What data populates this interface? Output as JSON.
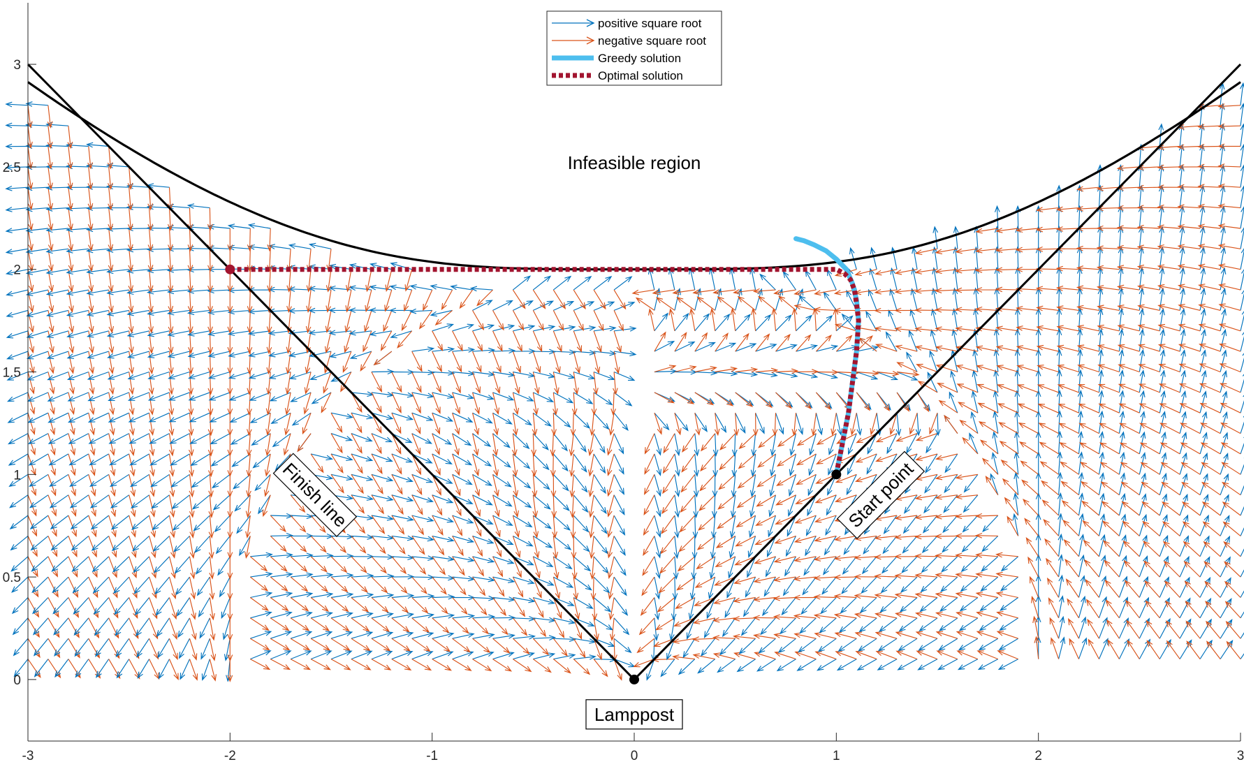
{
  "chart_data": {
    "type": "quiver",
    "xlim": [
      -3,
      3
    ],
    "ylim": [
      -0.3,
      3.3
    ],
    "xticks": [
      -3,
      -2,
      -1,
      0,
      1,
      2,
      3
    ],
    "yticks": [
      0,
      0.5,
      1,
      1.5,
      2,
      2.5,
      3
    ],
    "xtick_labels": [
      "-3",
      "-2",
      "-1",
      "0",
      "1",
      "2",
      "3"
    ],
    "ytick_labels": [
      "0",
      "0.5",
      "1",
      "1.5",
      "2",
      "2.5",
      "3"
    ],
    "grid": false,
    "legend_placement": "top-center",
    "legend": [
      {
        "label": "positive square root",
        "color": "#0072BD",
        "style": "arrow"
      },
      {
        "label": "negative square root",
        "color": "#D95319",
        "style": "arrow"
      },
      {
        "label": "Greedy solution",
        "color": "#4DBEEE",
        "style": "thick-line"
      },
      {
        "label": "Optimal solution",
        "color": "#A2142F",
        "style": "dotted-line"
      }
    ],
    "annotations": {
      "infeasible": {
        "text": "Infeasible region",
        "x": 0,
        "y": 2.52
      },
      "finish": {
        "text": "Finish line",
        "x": -1.58,
        "y": 0.9
      },
      "start": {
        "text": "Start point",
        "x": 1.22,
        "y": 0.9
      },
      "lamppost": {
        "text": "Lamppost",
        "x": 0,
        "y": -0.17
      }
    },
    "boundary_curve": {
      "formula": "sqrt(x^2+4) - x^2/(x^2+4)",
      "color": "#000000"
    },
    "finish_line": {
      "x": [
        -3,
        0
      ],
      "y": [
        3,
        0
      ],
      "color": "#000000"
    },
    "start_line": {
      "x": [
        0,
        3
      ],
      "y": [
        0,
        3
      ],
      "color": "#000000"
    },
    "points": [
      {
        "name": "lamppost",
        "x": 0,
        "y": 0,
        "color": "#000000"
      },
      {
        "name": "start",
        "x": 1,
        "y": 1,
        "color": "#000000"
      },
      {
        "name": "finish",
        "x": -2,
        "y": 2,
        "color": "#A2142F"
      }
    ],
    "greedy_solution": {
      "x": [
        1.0,
        1.03,
        1.06,
        1.08,
        1.1,
        1.11,
        1.1,
        1.08,
        1.05,
        1.0,
        0.95,
        0.89,
        0.84,
        0.8
      ],
      "y": [
        1.0,
        1.15,
        1.3,
        1.45,
        1.6,
        1.75,
        1.85,
        1.93,
        2.0,
        2.05,
        2.09,
        2.12,
        2.14,
        2.15
      ]
    },
    "optimal_solution": {
      "x": [
        1.0,
        1.03,
        1.06,
        1.08,
        1.1,
        1.11,
        1.1,
        1.09,
        1.07,
        1.04,
        1.0,
        0.95,
        0.5,
        0.0,
        -0.5,
        -1.0,
        -1.5,
        -2.0
      ],
      "y": [
        1.0,
        1.15,
        1.3,
        1.45,
        1.6,
        1.75,
        1.83,
        1.9,
        1.95,
        1.98,
        2.0,
        2.0,
        2.0,
        2.0,
        2.0,
        2.0,
        2.0,
        2.0
      ]
    },
    "vector_field": {
      "x_range": [
        -3,
        3
      ],
      "x_step": 0.1,
      "y_range": [
        0.1,
        3.0
      ],
      "y_step": 0.1,
      "positive_color": "#0072BD",
      "negative_color": "#D95319"
    }
  }
}
